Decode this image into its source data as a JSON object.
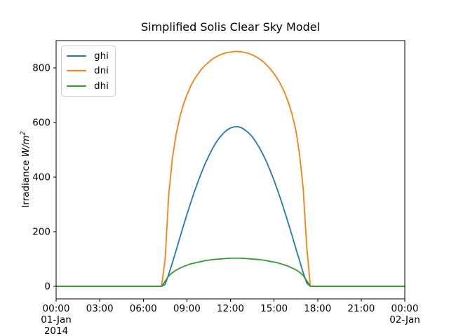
{
  "figure": {
    "ylabel_parts": {
      "prefix": "Irradiance ",
      "math": "W/m",
      "sup": "2"
    },
    "background": "#ffffff",
    "axes_color": "#000000"
  },
  "chart_data": {
    "type": "line",
    "title": "Simplified Solis Clear Sky Model",
    "xlabel": "",
    "ylabel": "Irradiance W/m^2",
    "grid": false,
    "legend_position": "upper left",
    "xlim_hours": [
      0,
      24
    ],
    "ylim": [
      -46,
      900
    ],
    "x_axis_start_date": "01-Jan 2014",
    "x_axis_end_date": "02-Jan",
    "x_ticks": [
      {
        "hour": 0,
        "lines": [
          "00:00",
          "01-Jan",
          "2014"
        ]
      },
      {
        "hour": 3,
        "lines": [
          "03:00"
        ]
      },
      {
        "hour": 6,
        "lines": [
          "06:00"
        ]
      },
      {
        "hour": 9,
        "lines": [
          "09:00"
        ]
      },
      {
        "hour": 12,
        "lines": [
          "12:00"
        ]
      },
      {
        "hour": 15,
        "lines": [
          "15:00"
        ]
      },
      {
        "hour": 18,
        "lines": [
          "18:00"
        ]
      },
      {
        "hour": 21,
        "lines": [
          "21:00"
        ]
      },
      {
        "hour": 24,
        "lines": [
          "00:00",
          "02-Jan"
        ]
      }
    ],
    "y_ticks": [
      {
        "value": 0,
        "label": "0"
      },
      {
        "value": 200,
        "label": "200"
      },
      {
        "value": 400,
        "label": "400"
      },
      {
        "value": 600,
        "label": "600"
      },
      {
        "value": 800,
        "label": "800"
      }
    ],
    "sunrise_hour": 7.4,
    "sunset_hour": 17.4,
    "x_hours": [
      0,
      1,
      2,
      3,
      4,
      5,
      6,
      7,
      7.25,
      7.5,
      7.75,
      8,
      8.25,
      8.5,
      8.75,
      9,
      9.25,
      9.5,
      9.75,
      10,
      10.25,
      10.5,
      10.75,
      11,
      11.25,
      11.5,
      11.75,
      12,
      12.25,
      12.5,
      12.75,
      13,
      13.25,
      13.5,
      13.75,
      14,
      14.25,
      14.5,
      14.75,
      15,
      15.25,
      15.5,
      15.75,
      16,
      16.25,
      16.5,
      16.75,
      17,
      17.25,
      17.5,
      18,
      19,
      20,
      21,
      22,
      23,
      24
    ],
    "series": [
      {
        "name": "ghi",
        "color": "#1f77b4",
        "peak": 585,
        "values": [
          0,
          0,
          0,
          0,
          0,
          0,
          0,
          0,
          0,
          7,
          44,
          86,
          130,
          175,
          219,
          263,
          304,
          344,
          381,
          416,
          448,
          477,
          503,
          526,
          545,
          560,
          572,
          580,
          584,
          585,
          581,
          573,
          562,
          548,
          529,
          507,
          482,
          454,
          422,
          388,
          351,
          312,
          271,
          228,
          184,
          139,
          95,
          51,
          12,
          0,
          0,
          0,
          0,
          0,
          0,
          0,
          0
        ]
      },
      {
        "name": "dni",
        "color": "#ff7f0e",
        "peak": 860,
        "values": [
          0,
          0,
          0,
          0,
          0,
          0,
          0,
          0,
          0,
          97,
          335,
          468,
          554,
          617,
          664,
          701,
          732,
          757,
          777,
          795,
          809,
          821,
          832,
          840,
          847,
          852,
          856,
          858,
          860,
          860,
          859,
          856,
          853,
          848,
          841,
          833,
          823,
          810,
          796,
          779,
          759,
          735,
          707,
          672,
          628,
          572,
          487,
          362,
          145,
          0,
          0,
          0,
          0,
          0,
          0,
          0,
          0
        ]
      },
      {
        "name": "dhi",
        "color": "#2ca02c",
        "peak": 103,
        "values": [
          0,
          0,
          0,
          0,
          0,
          0,
          0,
          0,
          0,
          18,
          38,
          50,
          59,
          66,
          72,
          77,
          82,
          85,
          88,
          91,
          94,
          96,
          98,
          99,
          100,
          101,
          102,
          103,
          103,
          103,
          103,
          102,
          101,
          100,
          99,
          98,
          96,
          94,
          91,
          89,
          86,
          82,
          78,
          73,
          67,
          61,
          52,
          40,
          21,
          0,
          0,
          0,
          0,
          0,
          0,
          0,
          0
        ]
      }
    ]
  }
}
